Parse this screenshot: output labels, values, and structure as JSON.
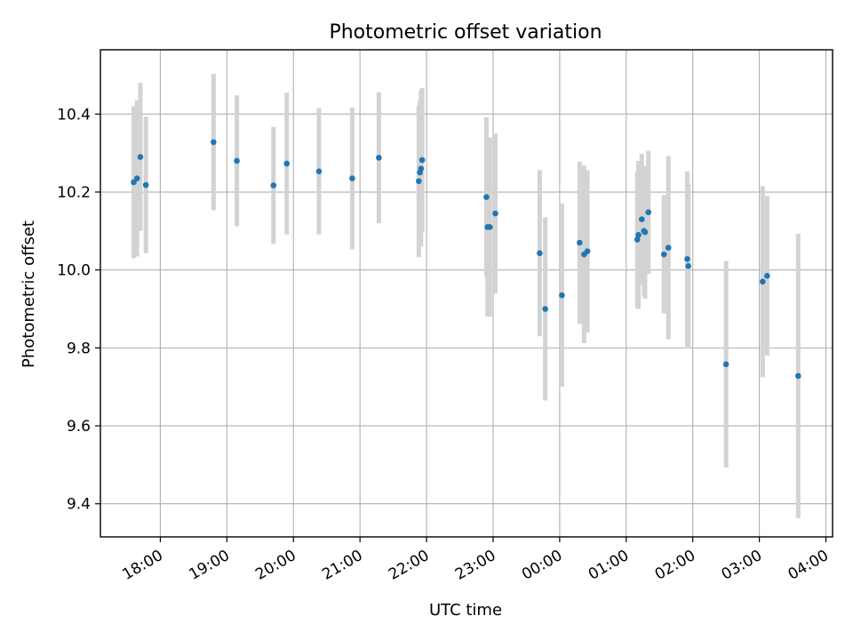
{
  "chart_data": {
    "type": "scatter",
    "title": "Photometric offset variation",
    "xlabel": "UTC time",
    "ylabel": "Photometric offset",
    "grid": true,
    "x_ticks": [
      "18:00",
      "19:00",
      "20:00",
      "21:00",
      "22:00",
      "23:00",
      "00:00",
      "01:00",
      "02:00",
      "03:00",
      "04:00"
    ],
    "y_ticks": [
      "9.4",
      "9.6",
      "9.8",
      "10.0",
      "10.2",
      "10.4"
    ],
    "xlim": [
      "17:06",
      "04:06"
    ],
    "ylim": [
      9.315,
      10.565
    ],
    "colors": {
      "point": "#1f77b4",
      "errorbar": "#d3d3d3",
      "grid": "#b0b0b0"
    },
    "points": [
      {
        "x": "17:36",
        "y": 10.225,
        "yerr": 0.195
      },
      {
        "x": "17:39",
        "y": 10.235,
        "yerr": 0.2
      },
      {
        "x": "17:42",
        "y": 10.29,
        "yerr": 0.19
      },
      {
        "x": "17:47",
        "y": 10.218,
        "yerr": 0.175
      },
      {
        "x": "18:48",
        "y": 10.328,
        "yerr": 0.175
      },
      {
        "x": "19:09",
        "y": 10.28,
        "yerr": 0.168
      },
      {
        "x": "19:42",
        "y": 10.217,
        "yerr": 0.15
      },
      {
        "x": "19:54",
        "y": 10.273,
        "yerr": 0.182
      },
      {
        "x": "20:23",
        "y": 10.253,
        "yerr": 0.162
      },
      {
        "x": "20:53",
        "y": 10.235,
        "yerr": 0.182
      },
      {
        "x": "21:17",
        "y": 10.288,
        "yerr": 0.168
      },
      {
        "x": "21:53",
        "y": 10.228,
        "yerr": 0.195
      },
      {
        "x": "21:54",
        "y": 10.25,
        "yerr": 0.185
      },
      {
        "x": "21:55",
        "y": 10.26,
        "yerr": 0.2
      },
      {
        "x": "21:56",
        "y": 10.282,
        "yerr": 0.185
      },
      {
        "x": "22:54",
        "y": 10.187,
        "yerr": 0.205
      },
      {
        "x": "22:55",
        "y": 10.11,
        "yerr": 0.23
      },
      {
        "x": "22:57",
        "y": 10.11,
        "yerr": 0.23
      },
      {
        "x": "23:02",
        "y": 10.145,
        "yerr": 0.205
      },
      {
        "x": "23:42",
        "y": 10.043,
        "yerr": 0.213
      },
      {
        "x": "23:47",
        "y": 9.9,
        "yerr": 0.235
      },
      {
        "x": "00:02",
        "y": 9.935,
        "yerr": 0.235
      },
      {
        "x": "00:18",
        "y": 10.07,
        "yerr": 0.208
      },
      {
        "x": "00:22",
        "y": 10.04,
        "yerr": 0.228
      },
      {
        "x": "00:25",
        "y": 10.048,
        "yerr": 0.208
      },
      {
        "x": "01:10",
        "y": 10.078,
        "yerr": 0.175
      },
      {
        "x": "01:11",
        "y": 10.09,
        "yerr": 0.19
      },
      {
        "x": "01:14",
        "y": 10.13,
        "yerr": 0.168
      },
      {
        "x": "01:16",
        "y": 10.1,
        "yerr": 0.165
      },
      {
        "x": "01:17",
        "y": 10.097,
        "yerr": 0.17
      },
      {
        "x": "01:20",
        "y": 10.148,
        "yerr": 0.158
      },
      {
        "x": "01:34",
        "y": 10.04,
        "yerr": 0.152
      },
      {
        "x": "01:38",
        "y": 10.057,
        "yerr": 0.235
      },
      {
        "x": "01:55",
        "y": 10.028,
        "yerr": 0.225
      },
      {
        "x": "01:56",
        "y": 10.01,
        "yerr": 0.212
      },
      {
        "x": "02:30",
        "y": 9.758,
        "yerr": 0.265
      },
      {
        "x": "03:03",
        "y": 9.97,
        "yerr": 0.245
      },
      {
        "x": "03:07",
        "y": 9.985,
        "yerr": 0.205
      },
      {
        "x": "03:35",
        "y": 9.728,
        "yerr": 0.365
      }
    ]
  }
}
